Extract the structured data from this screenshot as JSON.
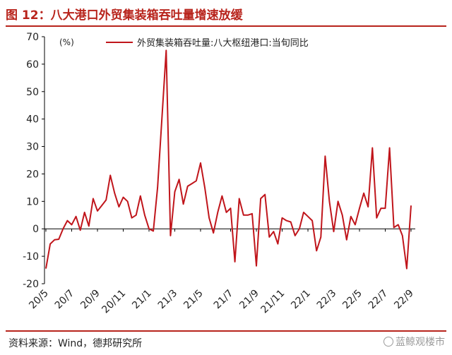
{
  "header": {
    "title": "图 12：八大港口外贸集装箱吞吐量增速放缓"
  },
  "footer": {
    "source": "资料来源：Wind，德邦研究所",
    "watermark": "蓝鲸观楼市"
  },
  "colors": {
    "accent": "#b8241c",
    "series": "#c0151b",
    "axis": "#000000",
    "text": "#222222"
  },
  "chart_data": {
    "type": "line",
    "unit_label": "(%)",
    "ylim": [
      -20,
      70
    ],
    "yticks": [
      -20,
      -10,
      0,
      10,
      20,
      30,
      40,
      50,
      60,
      70
    ],
    "grid": false,
    "legend_position": "top-center",
    "x_tick_labels": [
      "20/5",
      "20/7",
      "20/9",
      "20/11",
      "21/1",
      "21/3",
      "21/5",
      "21/7",
      "21/9",
      "21/11",
      "22/1",
      "22/3",
      "22/5",
      "22/7",
      "22/9"
    ],
    "series": [
      {
        "name": "外贸集装箱吞吐量:八大枢纽港口:当旬同比",
        "values": [
          -14.5,
          -5.5,
          -4.0,
          -3.8,
          0.0,
          3.0,
          1.5,
          4.5,
          -0.5,
          6.0,
          1.0,
          11.0,
          6.5,
          8.5,
          10.5,
          19.5,
          13.0,
          8.0,
          11.5,
          10.0,
          4.0,
          5.0,
          12.0,
          5.0,
          0.0,
          -0.8,
          15.0,
          40.0,
          65.0,
          -2.5,
          13.5,
          18.0,
          9.0,
          15.5,
          16.5,
          17.5,
          24.0,
          15.0,
          4.0,
          -1.5,
          6.0,
          12.0,
          6.0,
          7.5,
          -12.0,
          11.0,
          5.0,
          5.0,
          5.5,
          -13.5,
          11.0,
          12.5,
          -3.0,
          -1.0,
          -5.5,
          4.0,
          3.0,
          2.5,
          -2.5,
          0.0,
          6.0,
          4.5,
          3.0,
          -8.0,
          -3.0,
          26.5,
          10.0,
          -1.0,
          10.0,
          5.0,
          -4.0,
          4.5,
          1.5,
          7.5,
          13.0,
          8.0,
          29.5,
          4.0,
          7.5,
          7.5,
          29.5,
          0.5,
          1.5,
          -2.5,
          -14.5,
          8.5
        ]
      }
    ]
  }
}
